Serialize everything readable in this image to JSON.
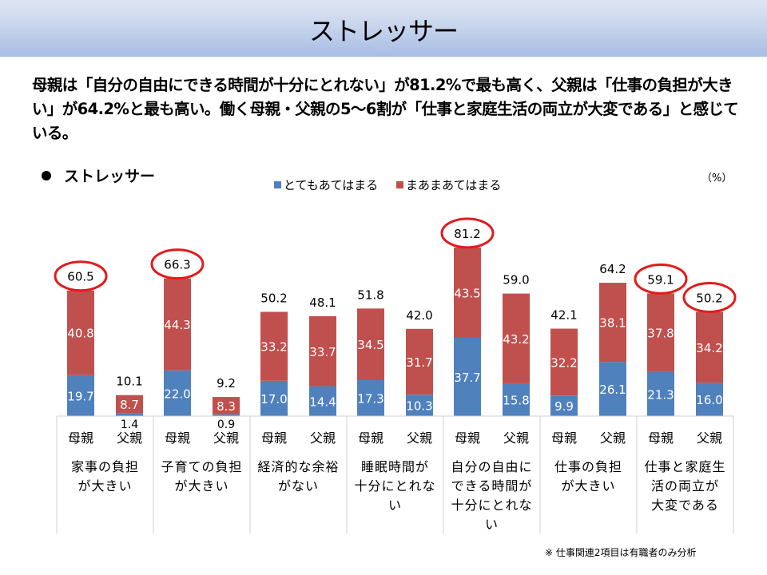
{
  "header": {
    "title": "ストレッサー"
  },
  "summary": "母親は「自分の自由にできる時間が十分にとれない」が81.2%で最も高く、父親は「仕事の負担が大きい」が64.2%と最も高い。働く母親・父親の5〜6割が「仕事と家庭生活の両立が大変である」と感じている。",
  "section_title": "ストレッサー",
  "unit_label": "（%）",
  "footnote": "※ 仕事関連2項目は有職者のみ分析",
  "colors": {
    "series1": "#4f81bd",
    "series2": "#c0504d",
    "highlight": "#e31a1c"
  },
  "chart_data": {
    "type": "bar",
    "stacked": true,
    "title": "ストレッサー",
    "xlabel": "",
    "ylabel": "（%）",
    "ylim": [
      0,
      90
    ],
    "grid": false,
    "legend_position": "top-center",
    "groups": [
      {
        "label": "家事の負担が大きい",
        "lines": [
          "家事の負担",
          "が大きい"
        ]
      },
      {
        "label": "子育ての負担が大きい",
        "lines": [
          "子育ての負担",
          "が大きい"
        ]
      },
      {
        "label": "経済的な余裕がない",
        "lines": [
          "経済的な余裕",
          "がない"
        ]
      },
      {
        "label": "睡眠時間が十分にとれない",
        "lines": [
          "睡眠時間が",
          "十分にとれな",
          "い"
        ]
      },
      {
        "label": "自分の自由にできる時間が十分にとれない",
        "lines": [
          "自分の自由に",
          "できる時間が",
          "十分にとれな",
          "い"
        ]
      },
      {
        "label": "仕事の負担が大きい",
        "lines": [
          "仕事の負担",
          "が大きい"
        ]
      },
      {
        "label": "仕事と家庭生活の両立が大変である",
        "lines": [
          "仕事と家庭生",
          "活の両立が",
          "大変である"
        ]
      }
    ],
    "subcategories": [
      "母親",
      "父親"
    ],
    "categories": [
      "家事の負担が大きい-母親",
      "家事の負担が大きい-父親",
      "子育ての負担が大きい-母親",
      "子育ての負担が大きい-父親",
      "経済的な余裕がない-母親",
      "経済的な余裕がない-父親",
      "睡眠時間が十分にとれない-母親",
      "睡眠時間が十分にとれない-父親",
      "自分の自由にできる時間が十分にとれない-母親",
      "自分の自由にできる時間が十分にとれない-父親",
      "仕事の負担が大きい-母親",
      "仕事の負担が大きい-父親",
      "仕事と家庭生活の両立が大変である-母親",
      "仕事と家庭生活の両立が大変である-父親"
    ],
    "series": [
      {
        "name": "とてもあてはまる",
        "values": [
          19.7,
          1.4,
          22.0,
          0.9,
          17.0,
          14.4,
          17.3,
          10.3,
          37.7,
          15.8,
          9.9,
          26.1,
          21.3,
          16.0
        ]
      },
      {
        "name": "まあまあてはまる",
        "values": [
          40.8,
          8.7,
          44.3,
          8.3,
          33.2,
          33.7,
          34.5,
          31.7,
          43.5,
          43.2,
          32.2,
          38.1,
          37.8,
          34.2
        ]
      }
    ],
    "totals": [
      "60.5",
      "10.1",
      "66.3",
      "9.2",
      "50.2",
      "48.1",
      "51.8",
      "42.0",
      "81.2",
      "59.0",
      "42.1",
      "64.2",
      "59.1",
      "50.2"
    ],
    "series_labels": [
      [
        "19.7",
        "1.4",
        "22.0",
        "0.9",
        "17.0",
        "14.4",
        "17.3",
        "10.3",
        "37.7",
        "15.8",
        "9.9",
        "26.1",
        "21.3",
        "16.0"
      ],
      [
        "40.8",
        "8.7",
        "44.3",
        "8.3",
        "33.2",
        "33.7",
        "34.5",
        "31.7",
        "43.5",
        "43.2",
        "32.2",
        "38.1",
        "37.8",
        "34.2"
      ]
    ],
    "highlighted": [
      0,
      2,
      8,
      12,
      13
    ]
  }
}
